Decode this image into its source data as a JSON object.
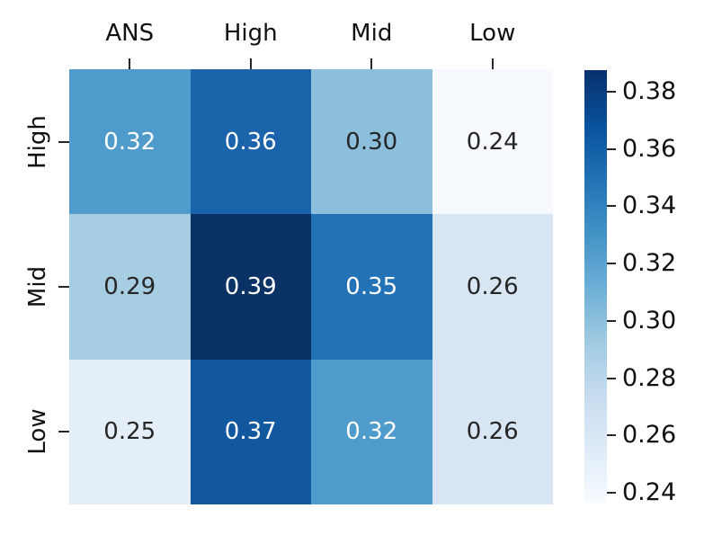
{
  "figure": {
    "background_color": "#ffffff",
    "axis_text_color": "#111111",
    "tick_mark_color": "#262626"
  },
  "chart_data": {
    "type": "heatmap",
    "title": "",
    "xlabel": "",
    "ylabel": "",
    "x_categories": [
      "ANS",
      "High",
      "Mid",
      "Low"
    ],
    "y_categories": [
      "High",
      "Mid",
      "Low"
    ],
    "values": [
      [
        0.32,
        0.36,
        0.3,
        0.24
      ],
      [
        0.29,
        0.39,
        0.35,
        0.26
      ],
      [
        0.25,
        0.37,
        0.32,
        0.26
      ]
    ],
    "cell_labels": [
      [
        "0.32",
        "0.36",
        "0.30",
        "0.24"
      ],
      [
        "0.29",
        "0.39",
        "0.35",
        "0.26"
      ],
      [
        "0.25",
        "0.37",
        "0.32",
        "0.26"
      ]
    ],
    "cell_colors": [
      [
        "#4f9bcb",
        "#1b63ab",
        "#8bbfdc",
        "#f6fafe"
      ],
      [
        "#a7cde3",
        "#0a3264",
        "#2472b6",
        "#d8e6f4"
      ],
      [
        "#e3eef8",
        "#11589f",
        "#4f9bcb",
        "#d8e6f4"
      ]
    ],
    "cell_text_colors": [
      [
        "#ffffff",
        "#ffffff",
        "#262626",
        "#262626"
      ],
      [
        "#262626",
        "#ffffff",
        "#ffffff",
        "#262626"
      ],
      [
        "#262626",
        "#ffffff",
        "#ffffff",
        "#262626"
      ]
    ],
    "colormap": "Blues",
    "grid_lines": false,
    "colorbar": {
      "position": "right",
      "tick_labels": [
        "0.38",
        "0.36",
        "0.34",
        "0.32",
        "0.30",
        "0.28",
        "0.26",
        "0.24"
      ],
      "value_range": [
        0.24,
        0.39
      ],
      "gradient_top_to_bottom": [
        "#08306b",
        "#08519c",
        "#2171b5",
        "#4292c6",
        "#6baed6",
        "#9ecae1",
        "#c6dbef",
        "#deebf7",
        "#f7fbff"
      ]
    }
  }
}
